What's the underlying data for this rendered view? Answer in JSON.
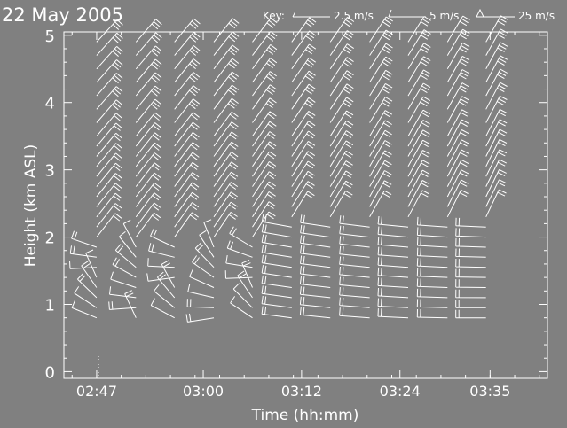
{
  "title": "22 May 2005",
  "key": {
    "label": "Key:",
    "entries": [
      "2.5 m/s",
      "5 m/s",
      "25 m/s"
    ]
  },
  "colors": {
    "background": "#808080",
    "foreground": "#ffffff"
  },
  "chart_data": {
    "type": "scatter",
    "subtype": "wind-barbs",
    "title": "22 May 2005",
    "xlabel": "Time (hh:mm)",
    "ylabel": "Height (km ASL)",
    "xticks": [
      "02:47",
      "03:00",
      "03:12",
      "03:24",
      "03:35"
    ],
    "xtick_minutes": [
      167,
      180,
      192,
      204,
      215
    ],
    "xlim_minutes": [
      163,
      222
    ],
    "yticks": [
      "0",
      "1",
      "2",
      "3",
      "4",
      "5"
    ],
    "ylim": [
      -0.1,
      5.05
    ],
    "grid": false,
    "barb_units": "m/s",
    "barb_increments": [
      2.5,
      5,
      25
    ],
    "series": [
      {
        "time_minutes": [
          167,
          171.8,
          176.5,
          181.3,
          186,
          190.8,
          195.5,
          200.3,
          205,
          209.8,
          214.5
        ],
        "heights_km": [
          0.8,
          0.95,
          1.1,
          1.25,
          1.4,
          1.55,
          1.7,
          1.85,
          2.0,
          2.15,
          2.3,
          2.45,
          2.6,
          2.75,
          2.9,
          3.05,
          3.2,
          3.35,
          3.5,
          3.7,
          3.9,
          4.1,
          4.3,
          4.5,
          4.7,
          4.9
        ]
      }
    ]
  }
}
